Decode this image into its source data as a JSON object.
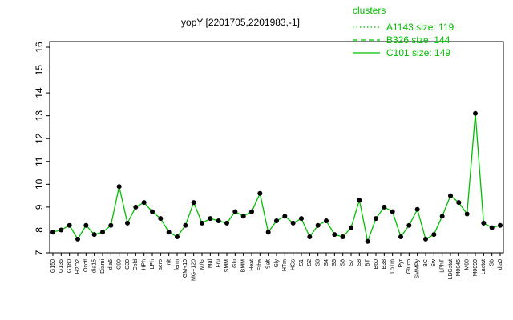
{
  "chart_data": {
    "type": "line",
    "title": "yopY [2201705,2201983,-1]",
    "categories": [
      "G150",
      "G135",
      "G180",
      "H2O2",
      "Oxctl",
      "dia15",
      "Diami",
      "dia5",
      "C90",
      "C30",
      "Cold",
      "HPh",
      "LPh",
      "aero",
      "nit",
      "ferm",
      "GM+10",
      "MG+120",
      "M/G",
      "Mal",
      "Fru",
      "SMM",
      "Glu",
      "BMM",
      "Heat",
      "Etha",
      "Salt",
      "Gly",
      "HTm",
      "HGs",
      "S1",
      "S2",
      "S3",
      "S4",
      "S5",
      "S6",
      "S7",
      "S8",
      "BT",
      "B60",
      "B38",
      "LoTm",
      "Pyr",
      "Gluco",
      "SMMPy",
      "BC",
      "Sw",
      "LPhT",
      "LBGstat",
      "M0045",
      "M90",
      "M0090",
      "Lactat",
      "Sb",
      "dia0"
    ],
    "values": [
      7.9,
      8.0,
      8.2,
      7.6,
      8.2,
      7.8,
      7.9,
      8.2,
      9.9,
      8.3,
      9.0,
      9.2,
      8.8,
      8.5,
      7.9,
      7.7,
      8.2,
      9.2,
      8.3,
      8.5,
      8.4,
      8.3,
      8.8,
      8.6,
      8.8,
      9.6,
      7.9,
      8.4,
      8.6,
      8.3,
      8.5,
      7.7,
      8.2,
      8.4,
      7.8,
      7.7,
      8.1,
      9.3,
      7.5,
      8.5,
      9.0,
      8.8,
      7.7,
      8.2,
      8.9,
      7.6,
      7.8,
      8.6,
      9.5,
      9.2,
      8.7,
      13.1,
      8.3,
      8.1,
      8.2
    ],
    "color": "#000000",
    "line_color": "#00c000",
    "ylim": [
      7,
      16
    ],
    "yticks": [
      7,
      8,
      9,
      10,
      11,
      12,
      13,
      14,
      15,
      16
    ],
    "legend": {
      "title": "clusters",
      "position": "top-right",
      "entries": [
        {
          "name": "A1143 size: 119",
          "style": "dotted"
        },
        {
          "name": "B326 size: 144",
          "style": "dashed"
        },
        {
          "name": "C101 size: 149",
          "style": "solid"
        }
      ]
    }
  }
}
